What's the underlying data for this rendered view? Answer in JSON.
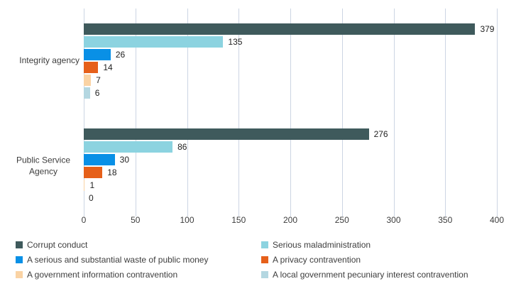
{
  "chart_data": {
    "type": "bar",
    "orientation": "horizontal",
    "title": "",
    "categories": [
      "Integrity agency",
      "Public Service Agency"
    ],
    "series": [
      {
        "name": "Corrupt conduct",
        "color": "#3F5A5C",
        "values": [
          379,
          276
        ]
      },
      {
        "name": "Serious maladministration",
        "color": "#8CD3E0",
        "values": [
          135,
          86
        ]
      },
      {
        "name": "A serious and substantial waste of public money",
        "color": "#0990E6",
        "values": [
          26,
          30
        ]
      },
      {
        "name": "A privacy contravention",
        "color": "#E6601A",
        "values": [
          14,
          18
        ]
      },
      {
        "name": "A government information contravention",
        "color": "#FAD3A4",
        "values": [
          7,
          1
        ]
      },
      {
        "name": "A local government pecuniary interest contravention",
        "color": "#B4D7E1",
        "values": [
          6,
          0
        ]
      }
    ],
    "x_axis": {
      "min": 0,
      "max": 400,
      "tick_interval": 50,
      "ticks": [
        0,
        50,
        100,
        150,
        200,
        250,
        300,
        350,
        400
      ]
    },
    "grid": true,
    "gridline_color": "#CCD5E3",
    "legend_position": "bottom",
    "legend_columns": 2,
    "text_color": "#3D3D3D",
    "value_label_color": "#222222",
    "background_color": "#FFFFFF"
  }
}
